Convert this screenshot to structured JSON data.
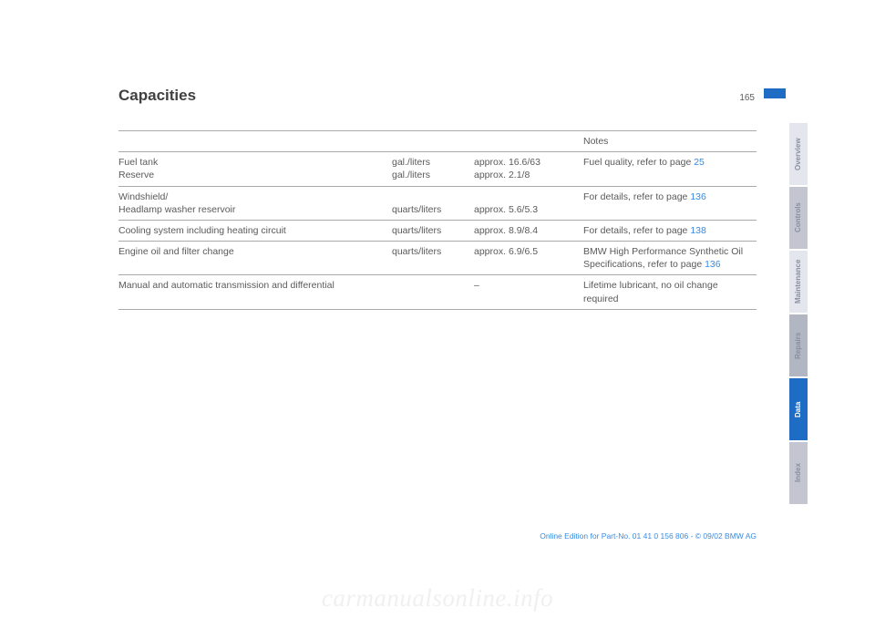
{
  "page": {
    "heading": "Capacities",
    "number": "165"
  },
  "columns": {
    "notes_header": "Notes"
  },
  "rows": [
    {
      "item": "Fuel tank\nReserve",
      "unit": "gal./liters\ngal./liters",
      "value": "approx. 16.6/63\napprox. 2.1/8",
      "notes_pre": "Fuel quality, refer to page ",
      "notes_link": "25",
      "notes_post": ""
    },
    {
      "item": "Windshield/\nHeadlamp washer reservoir",
      "unit": "\nquarts/liters",
      "value": "\napprox. 5.6/5.3",
      "notes_pre": "For details, refer to page ",
      "notes_link": "136",
      "notes_post": ""
    },
    {
      "item": "Cooling system including heating circuit",
      "unit": "quarts/liters",
      "value": "approx. 8.9/8.4",
      "notes_pre": "For details, refer to page ",
      "notes_link": "138",
      "notes_post": ""
    },
    {
      "item": "Engine oil and filter change",
      "unit": "quarts/liters",
      "value": "approx. 6.9/6.5",
      "notes_pre": "BMW High Performance Synthetic Oil\nSpecifications, refer to page ",
      "notes_link": "136",
      "notes_post": ""
    },
    {
      "item": "Manual and automatic transmission and differential",
      "unit": "",
      "value": "–",
      "notes_pre": "Lifetime lubricant, no oil change required",
      "notes_link": "",
      "notes_post": ""
    }
  ],
  "tabs": [
    {
      "label": "Overview",
      "cls": "i1"
    },
    {
      "label": "Controls",
      "cls": "i2"
    },
    {
      "label": "Maintenance",
      "cls": "i1"
    },
    {
      "label": "Repairs",
      "cls": "i3"
    },
    {
      "label": "Data",
      "cls": "active"
    },
    {
      "label": "Index",
      "cls": "i2"
    }
  ],
  "footer": "Online Edition for Part-No. 01 41 0 156 806 - © 09/02 BMW AG",
  "watermark": "carmanualsonline.info"
}
